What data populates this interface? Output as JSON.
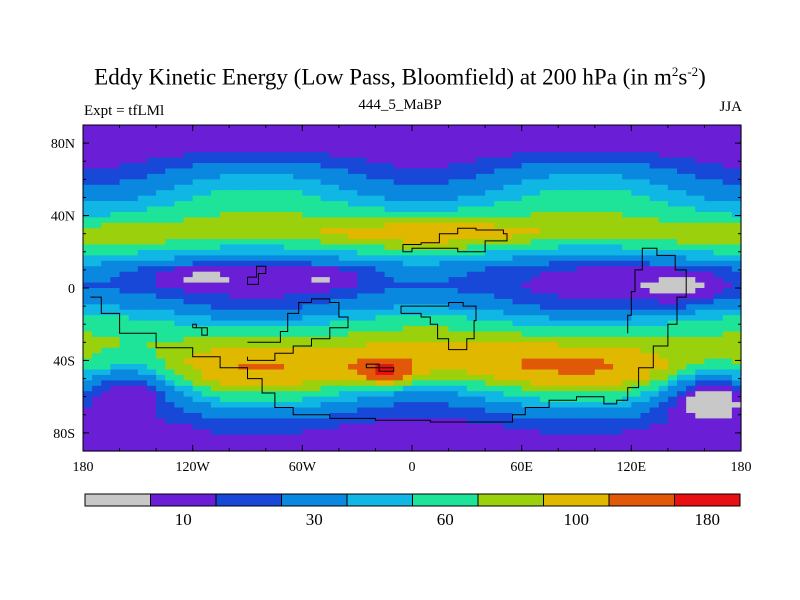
{
  "chart_data": {
    "type": "heatmap",
    "title": "Eddy Kinetic Energy (Low Pass, Bloomfield) at 200 hPa (in m",
    "title_units_sup1": "2",
    "title_units_s": "s",
    "title_units_sup2": "-2",
    "title_close": ")",
    "left_label": "Expt = tfLMl",
    "center_label": "444_5_MaBP",
    "right_label": "JJA",
    "x_ticks": [
      {
        "value": -180,
        "label": "180"
      },
      {
        "value": -120,
        "label": "120W"
      },
      {
        "value": -60,
        "label": "60W"
      },
      {
        "value": 0,
        "label": "0"
      },
      {
        "value": 60,
        "label": "60E"
      },
      {
        "value": 120,
        "label": "120E"
      },
      {
        "value": 180,
        "label": "180"
      }
    ],
    "y_ticks": [
      {
        "value": 80,
        "label": "80N"
      },
      {
        "value": 40,
        "label": "40N"
      },
      {
        "value": 0,
        "label": "0"
      },
      {
        "value": -40,
        "label": "40S"
      },
      {
        "value": -80,
        "label": "80S"
      }
    ],
    "xlim": [
      -180,
      180
    ],
    "ylim": [
      -90,
      90
    ],
    "levels": [
      5,
      10,
      20,
      30,
      45,
      60,
      80,
      100,
      130,
      180
    ],
    "colors": [
      "#c8c8c8",
      "#6a1fd6",
      "#1848d8",
      "#0a88e0",
      "#10b6e4",
      "#1ee49a",
      "#9ad00c",
      "#e0b800",
      "#e05808",
      "#e81010"
    ],
    "colorbar_labels": [
      {
        "index": 1,
        "label": "10"
      },
      {
        "index": 3,
        "label": "30"
      },
      {
        "index": 5,
        "label": "60"
      },
      {
        "index": 7,
        "label": "100"
      },
      {
        "index": 9,
        "label": "180"
      }
    ],
    "field": {
      "zonal_mean": [
        [
          90,
          10
        ],
        [
          78,
          14
        ],
        [
          68,
          26
        ],
        [
          55,
          46
        ],
        [
          40,
          72
        ],
        [
          30,
          98
        ],
        [
          20,
          56
        ],
        [
          10,
          26
        ],
        [
          0,
          22
        ],
        [
          -10,
          35
        ],
        [
          -20,
          62
        ],
        [
          -32,
          92
        ],
        [
          -42,
          112
        ],
        [
          -50,
          95
        ],
        [
          -58,
          60
        ],
        [
          -66,
          36
        ],
        [
          -76,
          20
        ],
        [
          -90,
          12
        ]
      ],
      "wave_amplitude": 0.32,
      "features": [
        {
          "lon": -15,
          "lat": -46,
          "amp": 110,
          "rlon": 14,
          "rlat": 6
        },
        {
          "lon": 20,
          "lat": -38,
          "amp": 25,
          "rlon": 60,
          "rlat": 12
        },
        {
          "lon": 10,
          "lat": 32,
          "amp": 28,
          "rlon": 45,
          "rlat": 9
        },
        {
          "lon": 150,
          "lat": 0,
          "amp": -20,
          "rlon": 28,
          "rlat": 12
        },
        {
          "lon": -120,
          "lat": 6,
          "amp": -14,
          "rlon": 25,
          "rlat": 6
        },
        {
          "lon": -45,
          "lat": 6,
          "amp": -14,
          "rlon": 20,
          "rlat": 6
        },
        {
          "lon": -150,
          "lat": -50,
          "amp": -45,
          "rlon": 30,
          "rlat": 15
        },
        {
          "lon": 160,
          "lat": -55,
          "amp": -45,
          "rlon": 25,
          "rlat": 15
        }
      ]
    },
    "land_outline_note": "Land boundary contours (coarse grid)",
    "land_outlines": [
      [
        [
          -176,
          -5
        ],
        [
          -170,
          -14
        ],
        [
          -160,
          -25
        ],
        [
          -140,
          -33
        ],
        [
          -120,
          -38
        ],
        [
          -105,
          -44
        ],
        [
          -90,
          -50
        ],
        [
          -82,
          -58
        ],
        [
          -75,
          -66
        ],
        [
          -65,
          -70
        ],
        [
          -45,
          -72
        ],
        [
          -20,
          -73
        ],
        [
          10,
          -74
        ],
        [
          40,
          -74
        ],
        [
          55,
          -70
        ],
        [
          62,
          -66
        ],
        [
          75,
          -62
        ],
        [
          90,
          -60
        ],
        [
          105,
          -64
        ],
        [
          112,
          -62
        ],
        [
          118,
          -55
        ],
        [
          124,
          -44
        ],
        [
          132,
          -32
        ],
        [
          140,
          -20
        ],
        [
          145,
          -5
        ],
        [
          150,
          10
        ],
        [
          144,
          18
        ],
        [
          134,
          22
        ],
        [
          126,
          10
        ],
        [
          122,
          -2
        ],
        [
          120,
          -15
        ],
        [
          118,
          -25
        ]
      ],
      [
        [
          -90,
          -30
        ],
        [
          -80,
          -30
        ],
        [
          -72,
          -24
        ],
        [
          -68,
          -14
        ],
        [
          -62,
          -8
        ],
        [
          -55,
          -6
        ],
        [
          -45,
          -8
        ],
        [
          -40,
          -16
        ],
        [
          -35,
          -22
        ],
        [
          -45,
          -28
        ],
        [
          -55,
          -32
        ],
        [
          -65,
          -36
        ],
        [
          -75,
          -40
        ],
        [
          -90,
          -38
        ]
      ],
      [
        [
          -6,
          -14
        ],
        [
          5,
          -16
        ],
        [
          10,
          -20
        ],
        [
          14,
          -28
        ],
        [
          20,
          -34
        ],
        [
          25,
          -34
        ],
        [
          30,
          -28
        ],
        [
          34,
          -18
        ],
        [
          35,
          -10
        ],
        [
          28,
          -8
        ],
        [
          20,
          -10
        ],
        [
          10,
          -10
        ],
        [
          -6,
          -14
        ]
      ],
      [
        [
          -5,
          24
        ],
        [
          5,
          25
        ],
        [
          15,
          30
        ],
        [
          25,
          33
        ],
        [
          35,
          32
        ],
        [
          50,
          30
        ],
        [
          52,
          26
        ],
        [
          40,
          20
        ],
        [
          25,
          22
        ],
        [
          10,
          22
        ],
        [
          0,
          20
        ],
        [
          -5,
          24
        ]
      ],
      [
        [
          -90,
          6
        ],
        [
          -85,
          12
        ],
        [
          -80,
          8
        ],
        [
          -84,
          2
        ],
        [
          -90,
          6
        ]
      ],
      [
        [
          -120,
          -22
        ],
        [
          -115,
          -26
        ],
        [
          -112,
          -22
        ],
        [
          -118,
          -20
        ],
        [
          -120,
          -22
        ]
      ],
      [
        [
          -25,
          -44
        ],
        [
          -18,
          -46
        ],
        [
          -10,
          -44
        ],
        [
          -18,
          -42
        ],
        [
          -25,
          -44
        ]
      ]
    ]
  }
}
